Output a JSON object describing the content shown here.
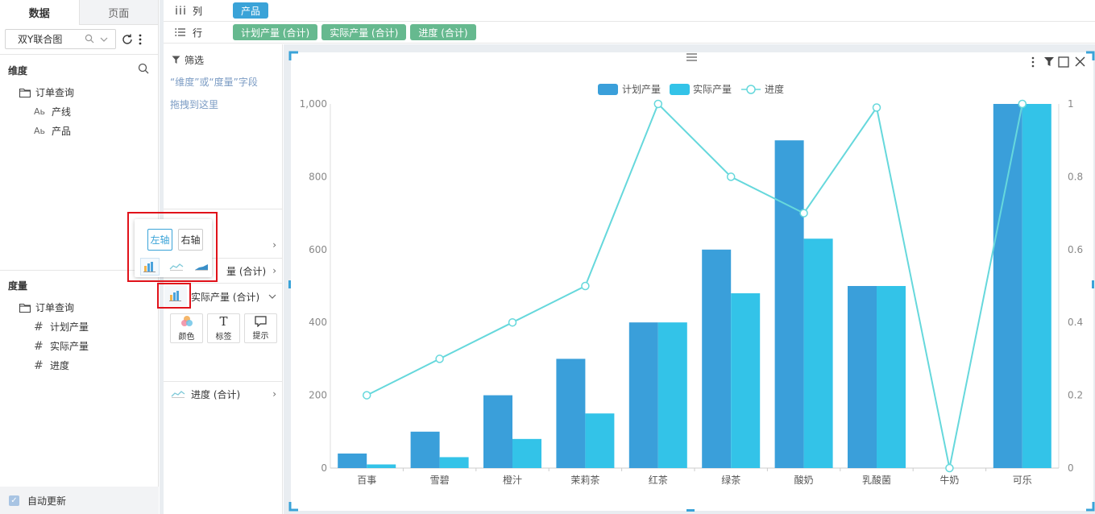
{
  "left_panel": {
    "tabs": [
      {
        "label": "数据"
      },
      {
        "label": "页面"
      }
    ],
    "dataset": {
      "name": "双Y联合图"
    },
    "dimensions": {
      "title": "维度",
      "folder": "订单查询",
      "fields": [
        {
          "label": "产线",
          "type_glyph": "Aь"
        },
        {
          "label": "产品",
          "type_glyph": "Aь"
        }
      ]
    },
    "measures": {
      "title": "度量",
      "folder": "订单查询",
      "fields": [
        {
          "label": "计划产量"
        },
        {
          "label": "实际产量"
        },
        {
          "label": "进度"
        }
      ]
    },
    "auto_update": {
      "label": "自动更新",
      "checked": true
    }
  },
  "shelves": {
    "columns": {
      "label": "列",
      "pills": [
        "产品"
      ]
    },
    "rows": {
      "label": "行",
      "pills": [
        "计划产量 (合计)",
        "实际产量 (合计)",
        "进度 (合计)"
      ]
    }
  },
  "marks_panel": {
    "filter": {
      "title": "筛选",
      "hint_line1": "“维度”或“度量”字段",
      "hint_line2": "拖拽到这里"
    },
    "partial_row_label": "量 (合计)",
    "actual_row_label": "实际产量 (合计)",
    "props": [
      {
        "label": "颜色"
      },
      {
        "label": "标签",
        "glyph": "T"
      },
      {
        "label": "提示"
      }
    ],
    "progress_row_label": "进度 (合计)"
  },
  "axis_popup": {
    "left_label": "左轴",
    "right_label": "右轴",
    "selected": "左轴"
  },
  "chart_data": {
    "type": "bar",
    "categories": [
      "百事",
      "雪碧",
      "橙汁",
      "茉莉茶",
      "红茶",
      "绿茶",
      "酸奶",
      "乳酸菌",
      "牛奶",
      "可乐"
    ],
    "series": [
      {
        "name": "计划产量",
        "type": "bar",
        "axis": "left",
        "color": "#3a9fda",
        "values": [
          40,
          100,
          200,
          300,
          400,
          600,
          900,
          500,
          0,
          1000
        ]
      },
      {
        "name": "实际产量",
        "type": "bar",
        "axis": "left",
        "color": "#33c3e8",
        "values": [
          10,
          30,
          80,
          150,
          400,
          480,
          630,
          500,
          0,
          1000
        ]
      },
      {
        "name": "进度",
        "type": "line",
        "axis": "right",
        "color": "#66d8dc",
        "values": [
          0.2,
          0.3,
          0.4,
          0.5,
          1,
          0.8,
          0.7,
          0.99,
          0,
          1
        ]
      }
    ],
    "y_left": {
      "min": 0,
      "max": 1000,
      "ticks": [
        "0",
        "200",
        "400",
        "600",
        "800",
        "1,000"
      ]
    },
    "y_right": {
      "min": 0,
      "max": 1,
      "ticks": [
        "0",
        "0.2",
        "0.4",
        "0.6",
        "0.8",
        "1"
      ]
    },
    "legend_position": "top-center",
    "grid": false
  }
}
